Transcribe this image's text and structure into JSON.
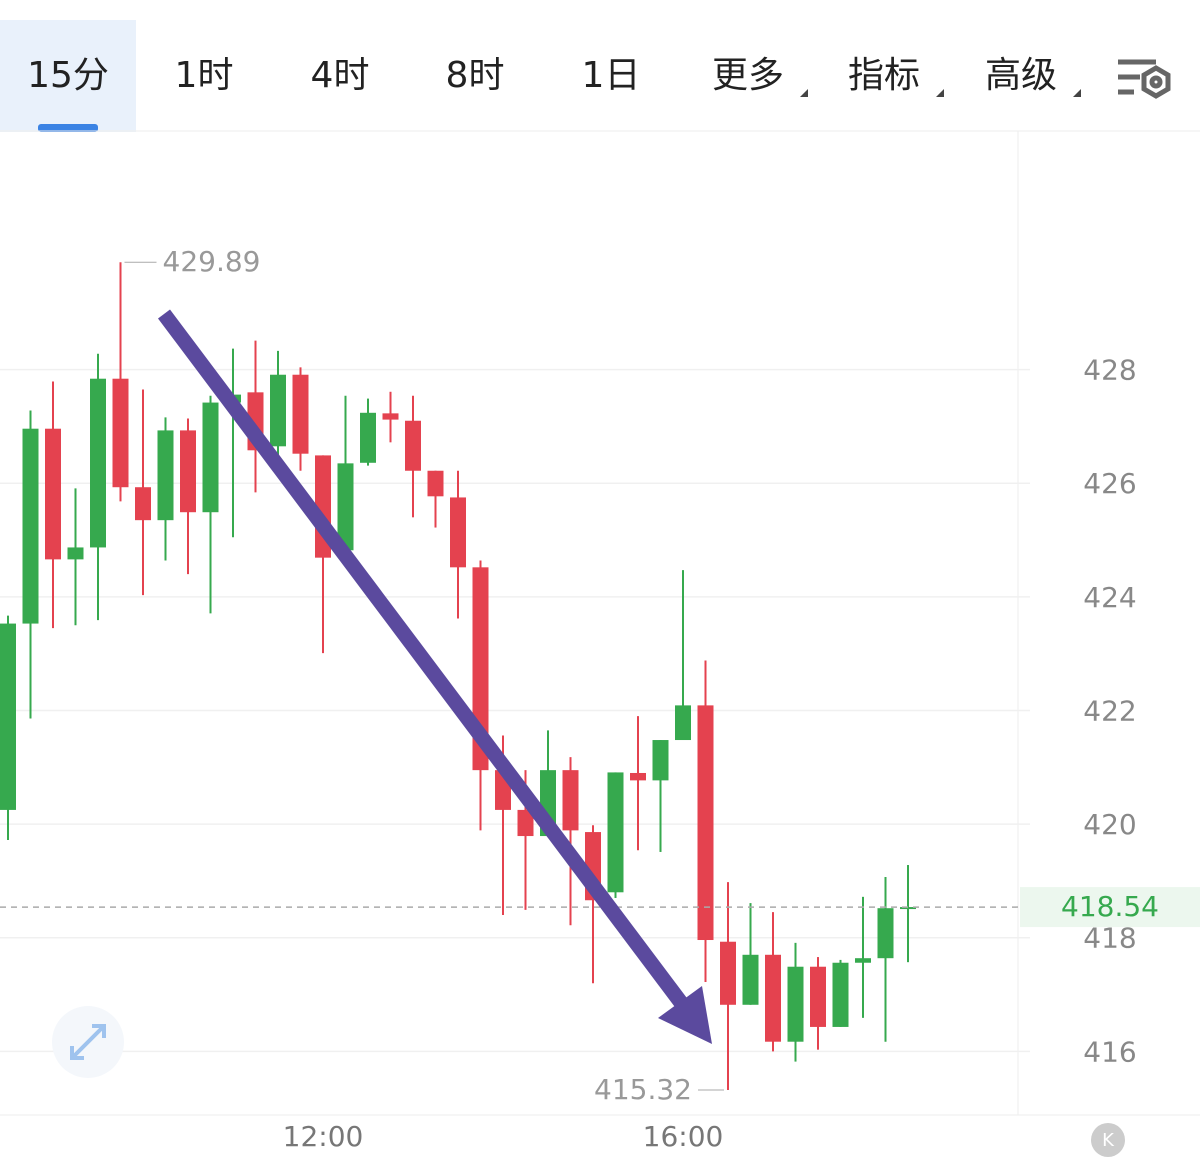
{
  "tabs": [
    "15分",
    "1时",
    "4时",
    "8时",
    "1日",
    "更多",
    "指标",
    "高级"
  ],
  "chart_data": {
    "type": "candlestick",
    "categories": [
      null,
      null,
      null,
      null,
      null,
      null,
      null,
      null,
      null,
      null,
      null,
      null,
      null,
      null,
      "12:00",
      null,
      null,
      null,
      null,
      null,
      null,
      null,
      null,
      null,
      null,
      null,
      null,
      null,
      null,
      null,
      "16:00",
      null,
      null,
      null,
      null,
      null,
      null,
      null,
      null,
      null,
      null
    ],
    "open": [
      420.25,
      423.53,
      426.96,
      424.66,
      424.87,
      427.84,
      425.93,
      425.35,
      426.93,
      425.49,
      427.42,
      427.6,
      426.65,
      427.91,
      426.49,
      424.82,
      426.36,
      427.23,
      427.1,
      426.22,
      425.75,
      424.52,
      420.95,
      420.25,
      419.79,
      420.95,
      419.86,
      418.8,
      420.9,
      420.77,
      421.48,
      422.09,
      417.93,
      416.82,
      417.7,
      416.17,
      417.49,
      416.43,
      417.56,
      417.64,
      418.52
    ],
    "high": [
      423.67,
      427.28,
      427.79,
      425.91,
      428.28,
      429.89,
      427.65,
      427.16,
      427.14,
      427.54,
      428.37,
      428.51,
      428.33,
      428.04,
      426.49,
      427.54,
      427.49,
      427.61,
      427.54,
      426.22,
      426.22,
      424.64,
      421.56,
      420.95,
      421.65,
      421.18,
      419.98,
      420.91,
      421.9,
      421.48,
      424.47,
      422.88,
      418.98,
      418.61,
      418.45,
      417.91,
      417.66,
      417.61,
      418.72,
      419.07,
      419.28
    ],
    "low": [
      419.72,
      421.86,
      423.45,
      423.5,
      423.59,
      425.68,
      424.03,
      424.64,
      424.4,
      423.71,
      425.05,
      425.84,
      426.4,
      426.22,
      423.01,
      424.82,
      426.31,
      426.72,
      425.4,
      425.22,
      423.62,
      419.89,
      418.4,
      418.49,
      419.79,
      418.22,
      417.2,
      418.7,
      419.54,
      419.51,
      421.48,
      417.22,
      415.32,
      416.82,
      416.0,
      415.82,
      416.03,
      416.43,
      416.59,
      416.17,
      417.57
    ],
    "close": [
      423.53,
      426.96,
      424.66,
      424.87,
      427.84,
      425.93,
      425.35,
      426.93,
      425.49,
      427.42,
      427.56,
      426.58,
      427.91,
      426.52,
      424.69,
      426.35,
      427.24,
      427.12,
      426.22,
      425.77,
      424.52,
      420.95,
      420.25,
      419.79,
      420.95,
      419.89,
      418.66,
      420.91,
      420.77,
      421.48,
      422.09,
      417.96,
      416.82,
      417.7,
      416.17,
      417.49,
      416.43,
      417.56,
      417.64,
      418.52,
      418.54
    ],
    "up_color": "#36a94e",
    "down_color": "#e4424f",
    "ylim": [
      414.88,
      432.2
    ],
    "yticks": [
      416,
      418,
      420,
      422,
      424,
      426,
      428
    ],
    "grid": true,
    "annotations": [
      429.89,
      415.32
    ],
    "last_price": 418.54
  }
}
